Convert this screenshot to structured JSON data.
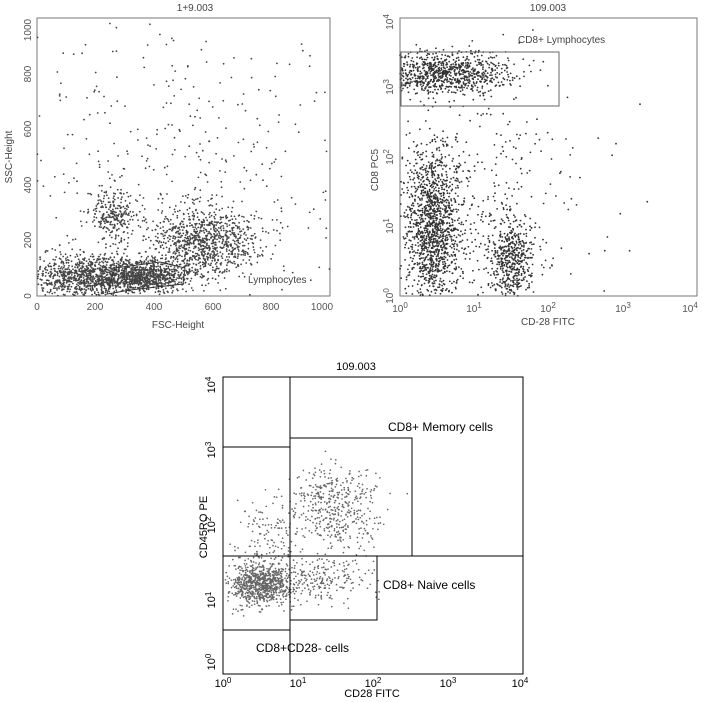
{
  "chart_data": [
    {
      "type": "scatter",
      "title": "1+9.003",
      "xlabel": "FSC-Height",
      "ylabel": "SSC-Height",
      "x_ticks": [
        "0",
        "200",
        "400",
        "600",
        "800",
        "1000"
      ],
      "y_ticks": [
        "0",
        "200",
        "400",
        "600",
        "800",
        "1000"
      ],
      "xlim": [
        0,
        1000
      ],
      "ylim": [
        0,
        1000
      ],
      "gates": [
        {
          "label": "Lymphocytes",
          "shape": "polygon"
        }
      ],
      "populations": [
        {
          "cx": 180,
          "cy": 70,
          "sx": 110,
          "sy": 40,
          "n": 1100
        },
        {
          "cx": 380,
          "cy": 70,
          "sx": 70,
          "sy": 25,
          "n": 700
        },
        {
          "cx": 560,
          "cy": 190,
          "sx": 90,
          "sy": 60,
          "n": 900
        },
        {
          "cx": 260,
          "cy": 290,
          "sx": 35,
          "sy": 45,
          "n": 250
        },
        {
          "cx": 500,
          "cy": 450,
          "sx": 300,
          "sy": 300,
          "n": 450
        }
      ]
    },
    {
      "type": "scatter",
      "title": "109.003",
      "xlabel": "CD-28 FITC",
      "ylabel": "CD8 PC5",
      "x_ticks": [
        "10^0",
        "10^1",
        "10^2",
        "10^3",
        "10^4"
      ],
      "y_ticks": [
        "10^0",
        "10^1",
        "10^2",
        "10^3",
        "10^4"
      ],
      "x_scale": "log",
      "y_scale": "log",
      "xlim": [
        1,
        10000
      ],
      "ylim": [
        1,
        10000
      ],
      "gates": [
        {
          "label": "CD8+ Lymphocytes",
          "x": [
            1,
            140
          ],
          "y": [
            600,
            3200
          ]
        }
      ],
      "populations": [
        {
          "cx": 0.6,
          "cy": 3.2,
          "sx": 0.45,
          "sy": 0.15,
          "n": 900
        },
        {
          "cx": 0.45,
          "cy": 1.0,
          "sx": 0.18,
          "sy": 0.55,
          "n": 1300
        },
        {
          "cx": 1.5,
          "cy": 0.5,
          "sx": 0.15,
          "sy": 0.3,
          "n": 500
        },
        {
          "cx": 1.0,
          "cy": 1.4,
          "sx": 0.7,
          "sy": 0.9,
          "n": 350
        }
      ]
    },
    {
      "type": "scatter",
      "title": "109.003",
      "xlabel": "CD28 FITC",
      "ylabel": "CD45RO PE",
      "x_ticks": [
        "10^0",
        "10^1",
        "10^2",
        "10^3",
        "10^4"
      ],
      "y_ticks": [
        "10^0",
        "10^1",
        "10^2",
        "10^3",
        "10^4"
      ],
      "x_scale": "log",
      "y_scale": "log",
      "xlim": [
        1,
        10000
      ],
      "ylim": [
        1,
        10000
      ],
      "gates": [
        {
          "label": "CD8+ Memory cells",
          "x": [
            8,
            320
          ],
          "y": [
            30,
            1300
          ]
        },
        {
          "label": "CD8+ Naive cells",
          "x": [
            8,
            110
          ],
          "y": [
            4,
            30
          ]
        },
        {
          "label": "CD8+CD28- cells",
          "x": [
            1,
            8
          ],
          "y": [
            3,
            1100
          ]
        }
      ],
      "quadrant_lines": {
        "x": 8,
        "y": 30
      },
      "populations": [
        {
          "cx": 0.5,
          "cy": 1.2,
          "sx": 0.2,
          "sy": 0.14,
          "n": 800
        },
        {
          "cx": 1.5,
          "cy": 2.2,
          "sx": 0.28,
          "sy": 0.3,
          "n": 450
        },
        {
          "cx": 1.3,
          "cy": 1.25,
          "sx": 0.3,
          "sy": 0.14,
          "n": 220
        },
        {
          "cx": 0.6,
          "cy": 1.8,
          "sx": 0.25,
          "sy": 0.3,
          "n": 160
        }
      ]
    }
  ]
}
